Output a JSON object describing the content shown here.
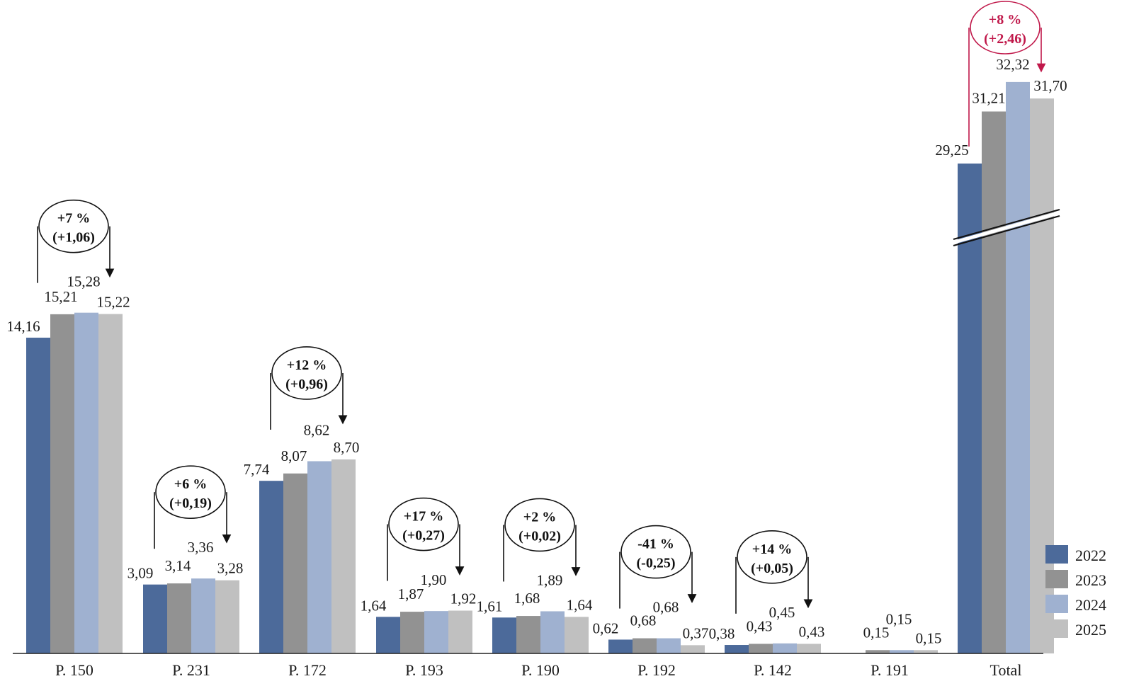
{
  "chart_data": {
    "type": "bar",
    "categories": [
      "P. 150",
      "P. 231",
      "P. 172",
      "P. 193",
      "P. 190",
      "P. 192",
      "P. 142",
      "P. 191",
      "Total"
    ],
    "series": [
      {
        "name": "2022",
        "color": "#4c6a9a",
        "values": [
          14.16,
          3.09,
          7.74,
          1.64,
          1.61,
          0.62,
          0.38,
          null,
          29.25
        ],
        "labels": [
          "14,16",
          "3,09",
          "7,74",
          "1,64",
          "1,61",
          "0,62",
          "0,38",
          "",
          "29,25"
        ]
      },
      {
        "name": "2023",
        "color": "#929292",
        "values": [
          15.21,
          3.14,
          8.07,
          1.87,
          1.68,
          0.68,
          0.43,
          0.15,
          31.21
        ],
        "labels": [
          "15,21",
          "3,14",
          "8,07",
          "1,87",
          "1,68",
          "0,68",
          "0,43",
          "0,15",
          "31,21"
        ]
      },
      {
        "name": "2024",
        "color": "#9fb1d0",
        "values": [
          15.28,
          3.36,
          8.62,
          1.9,
          1.89,
          0.68,
          0.45,
          0.15,
          32.32
        ],
        "labels": [
          "15,28",
          "3,36",
          "8,62",
          "1,90",
          "1,89",
          "0,68",
          "0,45",
          "0,15",
          "32,32"
        ]
      },
      {
        "name": "2025",
        "color": "#c0c0c0",
        "values": [
          15.22,
          3.28,
          8.7,
          1.92,
          1.64,
          0.37,
          0.43,
          0.15,
          31.7
        ],
        "labels": [
          "15,22",
          "3,28",
          "8,70",
          "1,92",
          "1,64",
          "0,37",
          "0,43",
          "0,15",
          "31,70"
        ]
      }
    ],
    "annotations": [
      {
        "category": "P. 150",
        "pct": "+7 %",
        "abs": "(+1,06)",
        "color": "#111111"
      },
      {
        "category": "P. 231",
        "pct": "+6 %",
        "abs": "(+0,19)",
        "color": "#111111"
      },
      {
        "category": "P. 172",
        "pct": "+12 %",
        "abs": "(+0,96)",
        "color": "#111111"
      },
      {
        "category": "P. 193",
        "pct": "+17 %",
        "abs": "(+0,27)",
        "color": "#111111"
      },
      {
        "category": "P. 190",
        "pct": "+2 %",
        "abs": "(+0,02)",
        "color": "#111111"
      },
      {
        "category": "P. 192",
        "pct": "-41 %",
        "abs": "(-0,25)",
        "color": "#111111"
      },
      {
        "category": "P. 142",
        "pct": "+14 %",
        "abs": "(+0,05)",
        "color": "#111111"
      },
      {
        "category": "Total",
        "pct": "+8 %",
        "abs": "(+2,46)",
        "color": "#c0184a"
      }
    ],
    "axis_break": {
      "category": "Total"
    },
    "legend_position": "bottom-right",
    "grid": false
  }
}
